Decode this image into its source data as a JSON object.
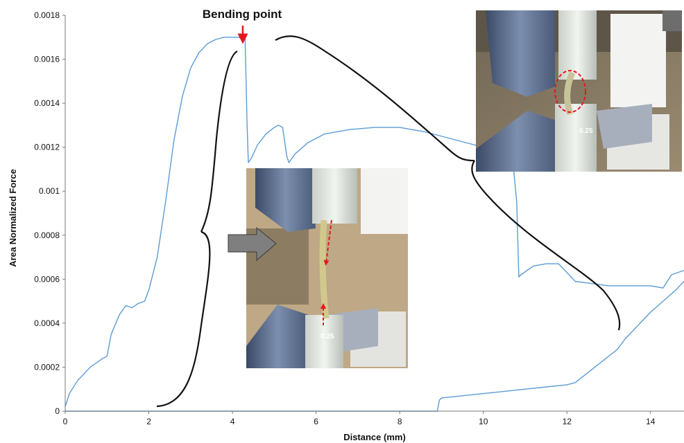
{
  "chart_data": {
    "type": "line",
    "xlabel": "Distance (mm)",
    "ylabel": "Area Normalized Force",
    "xlim": [
      0,
      14.8
    ],
    "ylim": [
      0,
      0.0018
    ],
    "xticks": [
      0,
      2,
      4,
      6,
      8,
      10,
      12,
      14
    ],
    "yticks": [
      0,
      0.0002,
      0.0004,
      0.0006,
      0.0008,
      0.001,
      0.0012,
      0.0014,
      0.0016,
      0.0018
    ],
    "ytick_labels": [
      "0",
      "0.0002",
      "0.0004",
      "0.0006",
      "0.0008",
      "0.001",
      "0.0012",
      "0.0014",
      "0.0016",
      "0.0018"
    ],
    "xtick_labels": [
      "0",
      "2",
      "4",
      "6",
      "8",
      "10",
      "12",
      "14"
    ],
    "grid": false,
    "line_color": "#5b9bd5",
    "series": [
      {
        "x": [
          0,
          0.1,
          0.3,
          0.6,
          0.9,
          1.0,
          1.1,
          1.3,
          1.45,
          1.6,
          1.75,
          1.9,
          2.0,
          2.2,
          2.4,
          2.6,
          2.8,
          3.0,
          3.2,
          3.4,
          3.6,
          3.8,
          4.0,
          4.15,
          4.25,
          4.3,
          4.35,
          4.38,
          4.45,
          4.6,
          4.8,
          5.0,
          5.1,
          5.2,
          5.3,
          5.35,
          5.5,
          5.8,
          6.2,
          6.8,
          7.4,
          8.0,
          8.6,
          9.2,
          9.8,
          10.3,
          10.7,
          10.8,
          10.85,
          10.9,
          11.2,
          11.5,
          11.8,
          12.0,
          12.2,
          12.6,
          13.0,
          13.5,
          14.0,
          14.3,
          14.5,
          14.8
        ],
        "y": [
          2e-05,
          8e-05,
          0.00014,
          0.0002,
          0.00024,
          0.00025,
          0.00035,
          0.00044,
          0.00048,
          0.00047,
          0.00049,
          0.0005,
          0.00055,
          0.0007,
          0.00095,
          0.00123,
          0.00143,
          0.00156,
          0.00163,
          0.00167,
          0.00169,
          0.0017,
          0.0017,
          0.0017,
          0.00169,
          0.00171,
          0.0013,
          0.00113,
          0.00115,
          0.00121,
          0.00126,
          0.00129,
          0.0013,
          0.00129,
          0.00116,
          0.00113,
          0.00117,
          0.00122,
          0.00126,
          0.00128,
          0.00129,
          0.00129,
          0.00127,
          0.00124,
          0.00121,
          0.00118,
          0.00115,
          0.00095,
          0.00061,
          0.00062,
          0.00066,
          0.00067,
          0.00067,
          0.00063,
          0.00059,
          0.00058,
          0.00057,
          0.00057,
          0.00057,
          0.00056,
          0.00062,
          0.00064
        ]
      },
      {
        "x": [
          0,
          2,
          4,
          6,
          8,
          8.9,
          8.95,
          9.0,
          9.5,
          10.0,
          10.5,
          11.0,
          11.5,
          12.0,
          12.2,
          12.4,
          12.6,
          12.8,
          13.0,
          13.2,
          13.4,
          13.7,
          14.0,
          14.3,
          14.6,
          14.8
        ],
        "y": [
          0,
          0,
          0,
          0,
          0,
          0,
          5e-05,
          6e-05,
          7e-05,
          8e-05,
          9e-05,
          0.0001,
          0.00011,
          0.00012,
          0.00013,
          0.00016,
          0.00019,
          0.00022,
          0.00025,
          0.00028,
          0.00033,
          0.00039,
          0.00045,
          0.0005,
          0.00055,
          0.00059
        ]
      }
    ]
  },
  "annotations": {
    "bending_point": "Bending point"
  },
  "photos": {
    "top_right_label": "0.25",
    "center_label": "0.25"
  }
}
